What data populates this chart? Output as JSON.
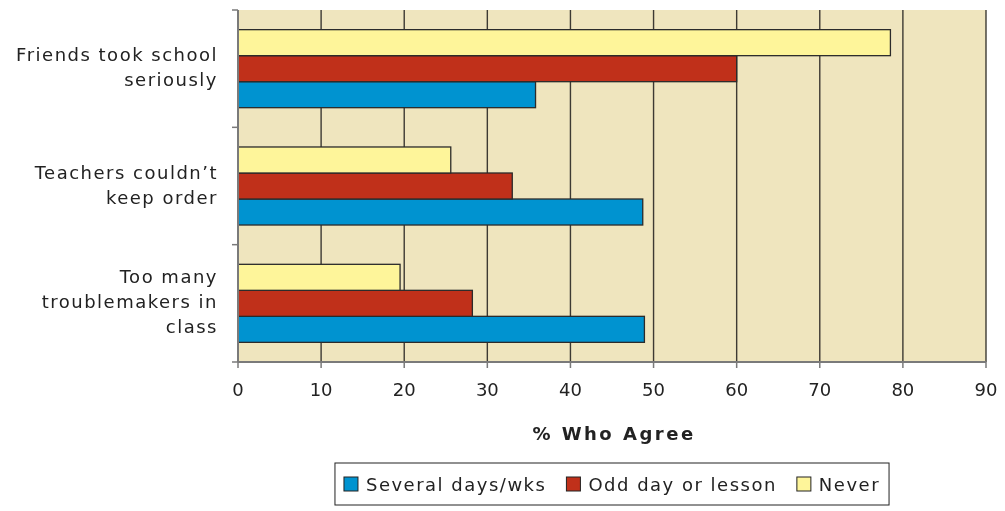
{
  "chart_data": {
    "type": "bar",
    "orientation": "horizontal",
    "categories": [
      "Friends took school seriously",
      "Teachers couldn’t keep order",
      "Too many troublemakers in class"
    ],
    "series": [
      {
        "name": "Several days/wks",
        "color": "#0093d0",
        "values": [
          35.8,
          48.7,
          48.9
        ]
      },
      {
        "name": "Odd day or lesson",
        "color": "#c0301a",
        "values": [
          60,
          33,
          28.2
        ]
      },
      {
        "name": "Never",
        "color": "#fef59a",
        "values": [
          78.5,
          25.6,
          19.5
        ]
      }
    ],
    "xlabel": "% Who Agree",
    "xlim": [
      0,
      90
    ],
    "xticks": [
      0,
      10,
      20,
      30,
      40,
      50,
      60,
      70,
      80,
      90
    ],
    "grid": "x",
    "legend": "bottom"
  }
}
